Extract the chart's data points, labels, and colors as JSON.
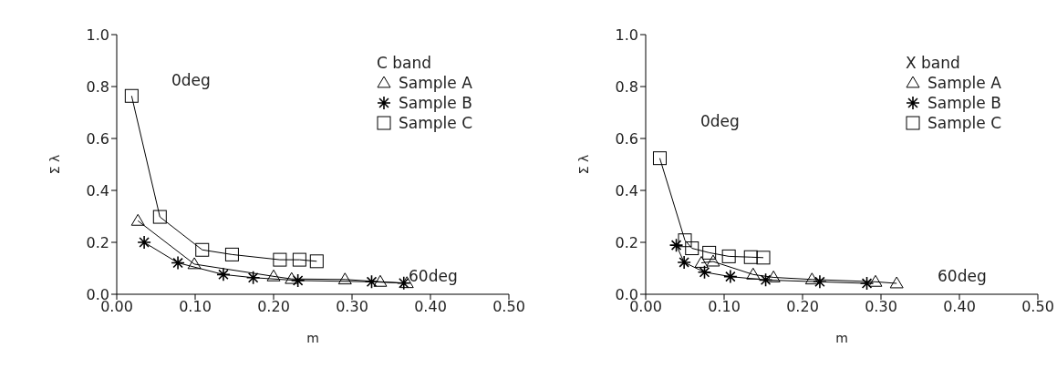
{
  "chart_data": [
    {
      "type": "line",
      "xlabel": "m",
      "ylabel": "Σ λ",
      "legend_title": "C band",
      "legend": "top right",
      "grid": false,
      "line_style": "solid",
      "xlim": [
        0,
        0.5
      ],
      "xticks": [
        {
          "value": 0,
          "label": "0.00"
        },
        {
          "value": 0.1,
          "label": "0.10"
        },
        {
          "value": 0.2,
          "label": "0.20"
        },
        {
          "value": 0.3,
          "label": "0.30"
        },
        {
          "value": 0.4,
          "label": "0.40"
        },
        {
          "value": 0.5,
          "label": "0.50"
        }
      ],
      "ylim": [
        0,
        1
      ],
      "yticks": [
        {
          "value": 0,
          "label": "0.0"
        },
        {
          "value": 0.2,
          "label": "0.2"
        },
        {
          "value": 0.4,
          "label": "0.4"
        },
        {
          "value": 0.6,
          "label": "0.6"
        },
        {
          "value": 0.8,
          "label": "0.8"
        },
        {
          "value": 1,
          "label": "1.0"
        }
      ],
      "annotations": [
        "0deg",
        "60deg"
      ],
      "series": [
        {
          "name": "Sample A",
          "color": "#000000",
          "marker": "triangle",
          "x": [
            0.027,
            0.099,
            0.2,
            0.223,
            0.291,
            0.336,
            0.37
          ],
          "values": [
            0.283,
            0.116,
            0.069,
            0.059,
            0.057,
            0.048,
            0.043
          ]
        },
        {
          "name": "Sample B",
          "color": "#000000",
          "marker": "cross",
          "x": [
            0.035,
            0.078,
            0.136,
            0.174,
            0.231,
            0.325,
            0.366
          ],
          "values": [
            0.2,
            0.121,
            0.076,
            0.064,
            0.053,
            0.048,
            0.043
          ]
        },
        {
          "name": "Sample C",
          "color": "#000000",
          "marker": "square",
          "x": [
            0.019,
            0.055,
            0.109,
            0.147,
            0.208,
            0.233,
            0.255
          ],
          "values": [
            0.764,
            0.298,
            0.171,
            0.153,
            0.133,
            0.133,
            0.127
          ]
        }
      ]
    },
    {
      "type": "line",
      "xlabel": "m",
      "ylabel": "Σ λ",
      "legend_title": "X band",
      "legend": "top right",
      "grid": false,
      "line_style": "solid",
      "xlim": [
        0,
        0.5
      ],
      "xticks": [
        {
          "value": 0,
          "label": "0.00"
        },
        {
          "value": 0.1,
          "label": "0.10"
        },
        {
          "value": 0.2,
          "label": "0.20"
        },
        {
          "value": 0.3,
          "label": "0.30"
        },
        {
          "value": 0.4,
          "label": "0.40"
        },
        {
          "value": 0.5,
          "label": "0.50"
        }
      ],
      "ylim": [
        0,
        1
      ],
      "yticks": [
        {
          "value": 0,
          "label": "0.0"
        },
        {
          "value": 0.2,
          "label": "0.2"
        },
        {
          "value": 0.4,
          "label": "0.4"
        },
        {
          "value": 0.6,
          "label": "0.6"
        },
        {
          "value": 0.8,
          "label": "0.8"
        },
        {
          "value": 1,
          "label": "1.0"
        }
      ],
      "annotations": [
        "0deg",
        "60deg"
      ],
      "series": [
        {
          "name": "Sample A",
          "color": "#000000",
          "marker": "triangle",
          "x": [
            0.071,
            0.086,
            0.137,
            0.163,
            0.212,
            0.293,
            0.32
          ],
          "values": [
            0.121,
            0.126,
            0.076,
            0.065,
            0.057,
            0.048,
            0.042
          ]
        },
        {
          "name": "Sample B",
          "color": "#000000",
          "marker": "cross",
          "x": [
            0.039,
            0.049,
            0.075,
            0.108,
            0.153,
            0.222,
            0.282
          ],
          "values": [
            0.189,
            0.123,
            0.085,
            0.068,
            0.055,
            0.048,
            0.042
          ]
        },
        {
          "name": "Sample C",
          "color": "#000000",
          "marker": "square",
          "x": [
            0.018,
            0.05,
            0.059,
            0.081,
            0.106,
            0.134,
            0.15
          ],
          "values": [
            0.524,
            0.208,
            0.177,
            0.16,
            0.146,
            0.143,
            0.141
          ]
        }
      ]
    }
  ]
}
